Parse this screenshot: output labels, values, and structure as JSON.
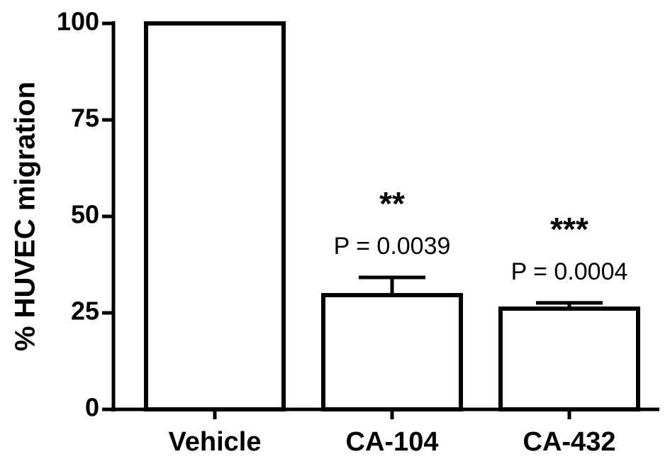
{
  "chart_data": {
    "type": "bar",
    "ylabel": "% HUVEC migration",
    "categories": [
      "Vehicle",
      "CA-104",
      "CA-432"
    ],
    "values": [
      100,
      29.6,
      26.1
    ],
    "errors": [
      0,
      4.6,
      1.5
    ],
    "color": "#ffffff",
    "ylim": [
      0,
      100
    ],
    "yticks": [
      0,
      25,
      50,
      75,
      100
    ],
    "annotations": [
      null,
      {
        "stars": "**",
        "p": "P = 0.0039"
      },
      {
        "stars": "***",
        "p": "P = 0.0004"
      }
    ]
  }
}
